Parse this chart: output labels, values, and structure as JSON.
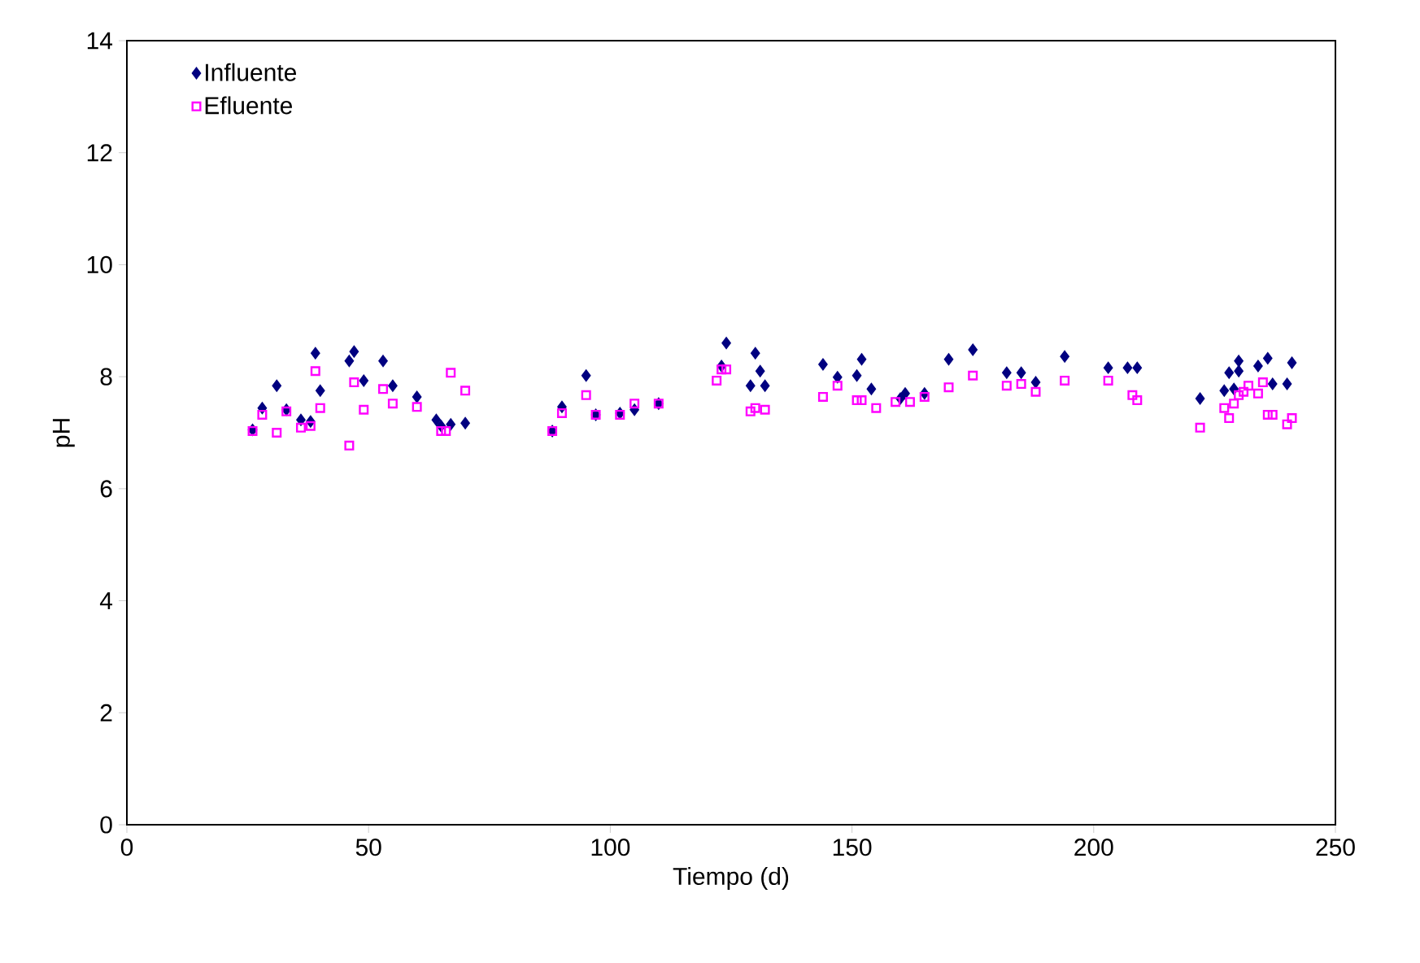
{
  "chart_data": {
    "type": "scatter",
    "xlabel": "Tiempo (d)",
    "ylabel": "pH",
    "xlim": [
      0,
      250
    ],
    "ylim": [
      0,
      14
    ],
    "xticks": [
      0,
      50,
      100,
      150,
      200,
      250
    ],
    "yticks": [
      0,
      2,
      4,
      6,
      8,
      10,
      12,
      14
    ],
    "grid": false,
    "legend": "top left",
    "series": [
      {
        "name": "Influente",
        "color": "#000080",
        "marker": "diamond",
        "x": [
          26,
          28,
          31,
          33,
          36,
          38,
          39,
          40,
          46,
          47,
          49,
          53,
          55,
          60,
          64,
          65,
          67,
          70,
          88,
          90,
          95,
          97,
          102,
          105,
          110,
          123,
          124,
          130,
          131,
          129,
          132,
          144,
          147,
          151,
          152,
          154,
          160,
          161,
          165,
          170,
          175,
          182,
          185,
          188,
          194,
          203,
          207,
          209,
          222,
          227,
          228,
          230,
          230,
          229,
          234,
          235.5,
          236,
          237,
          240,
          241
        ],
        "values": [
          7.05,
          7.44,
          7.84,
          7.41,
          7.23,
          7.2,
          8.42,
          7.75,
          8.28,
          8.45,
          7.93,
          8.28,
          7.84,
          7.64,
          7.23,
          7.12,
          7.15,
          7.17,
          7.03,
          7.46,
          8.02,
          7.32,
          7.35,
          7.41,
          7.52,
          8.19,
          8.6,
          8.42,
          8.1,
          7.84,
          7.84,
          8.22,
          7.99,
          8.02,
          8.31,
          7.78,
          7.61,
          7.7,
          7.7,
          8.31,
          8.48,
          8.07,
          8.07,
          7.9,
          8.36,
          8.16,
          8.16,
          8.16,
          7.61,
          7.75,
          8.07,
          8.1,
          8.28,
          7.78,
          8.19,
          null,
          8.33,
          7.87,
          7.87,
          8.25
        ]
      },
      {
        "name": "Efluente",
        "color": "#ff00ff",
        "marker": "square",
        "x": [
          26,
          28,
          31,
          33,
          36,
          38,
          39,
          40,
          46,
          47,
          49,
          53,
          55,
          60,
          65,
          66,
          67,
          70,
          88,
          90,
          95,
          97,
          102,
          105,
          110,
          122,
          123,
          124,
          129,
          130,
          132,
          144,
          147,
          151,
          152,
          155,
          159,
          162,
          165,
          170,
          175,
          182,
          185,
          188,
          194,
          203,
          208,
          209,
          222,
          227,
          228,
          229,
          230,
          231,
          232,
          234,
          235,
          236,
          237,
          240,
          241
        ],
        "values": [
          7.03,
          7.32,
          7.0,
          7.38,
          7.09,
          7.12,
          8.1,
          7.44,
          6.77,
          7.9,
          7.41,
          7.78,
          7.52,
          7.46,
          7.03,
          7.03,
          8.07,
          7.75,
          7.03,
          7.35,
          7.67,
          7.32,
          7.32,
          7.52,
          7.52,
          7.93,
          8.13,
          8.13,
          7.38,
          7.44,
          7.41,
          7.64,
          7.84,
          7.58,
          7.58,
          7.44,
          7.55,
          7.55,
          7.64,
          7.81,
          8.02,
          7.84,
          7.87,
          7.73,
          7.93,
          7.93,
          7.67,
          7.58,
          7.09,
          7.44,
          7.26,
          7.52,
          7.67,
          7.73,
          7.84,
          7.7,
          7.9,
          7.32,
          7.32,
          7.15,
          7.26
        ]
      }
    ]
  }
}
